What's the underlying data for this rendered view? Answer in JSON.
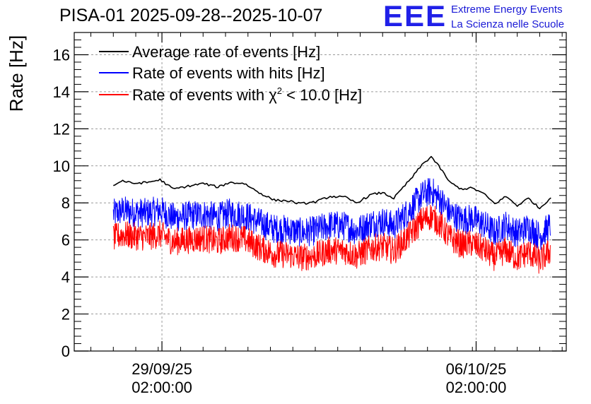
{
  "chart_data": {
    "type": "line",
    "title": "PISA-01 2025-09-28--2025-10-07",
    "xlabel": "",
    "ylabel": "Rate [Hz]",
    "ylim": [
      0,
      17.2
    ],
    "yticks": [
      0,
      2,
      4,
      6,
      8,
      10,
      12,
      14,
      16
    ],
    "x_unit": "hours since 2025-09-28 00:00",
    "xlim": [
      -20.9,
      242.2
    ],
    "xticks": [
      {
        "x": 26,
        "label_date": "29/09/25",
        "label_time": "02:00:00"
      },
      {
        "x": 194,
        "label_date": "06/10/25",
        "label_time": "02:00:00"
      }
    ],
    "grid": true,
    "legend": "top-left",
    "series": [
      {
        "name": "Average rate of events [Hz]",
        "color": "#000000",
        "kind": "smooth",
        "x": [
          0,
          5,
          10,
          18,
          25,
          32,
          40,
          48,
          56,
          62,
          70,
          78,
          86,
          94,
          100,
          108,
          116,
          124,
          130,
          138,
          144,
          150,
          156,
          160,
          165,
          170,
          175,
          180,
          186,
          192,
          198,
          204,
          210,
          216,
          222,
          228,
          234
        ],
        "values": [
          8.95,
          9.2,
          9.05,
          9.1,
          9.25,
          8.75,
          8.9,
          9.05,
          8.85,
          9.1,
          9.05,
          8.55,
          8.15,
          8.1,
          7.95,
          8.05,
          8.35,
          8.3,
          8.0,
          8.45,
          8.55,
          8.25,
          8.95,
          9.4,
          10.05,
          10.5,
          9.85,
          9.1,
          8.75,
          8.8,
          8.5,
          7.95,
          8.35,
          7.85,
          8.25,
          7.7,
          8.3
        ]
      },
      {
        "name": "Rate of events with hits [Hz]",
        "color": "#0000ff",
        "kind": "noisy",
        "x": [
          0,
          5,
          10,
          18,
          25,
          32,
          40,
          48,
          56,
          62,
          70,
          78,
          86,
          94,
          100,
          108,
          116,
          124,
          130,
          138,
          144,
          150,
          156,
          160,
          165,
          170,
          175,
          180,
          186,
          192,
          198,
          204,
          210,
          216,
          222,
          228,
          234
        ],
        "values": [
          7.4,
          7.6,
          7.5,
          7.45,
          7.6,
          7.2,
          7.3,
          7.4,
          7.2,
          7.45,
          7.35,
          6.95,
          6.6,
          6.55,
          6.4,
          6.5,
          6.8,
          6.75,
          6.5,
          6.9,
          7.0,
          6.75,
          7.35,
          7.8,
          8.4,
          8.65,
          8.15,
          7.45,
          7.1,
          7.15,
          6.85,
          6.4,
          6.8,
          6.35,
          6.7,
          6.2,
          6.8
        ],
        "noise": 0.8
      },
      {
        "name": "Rate of events with χ² < 10.0 [Hz]",
        "color": "#ff0000",
        "kind": "noisy",
        "x": [
          0,
          5,
          10,
          18,
          25,
          32,
          40,
          48,
          56,
          62,
          70,
          78,
          86,
          94,
          100,
          108,
          116,
          124,
          130,
          138,
          144,
          150,
          156,
          160,
          165,
          170,
          175,
          180,
          186,
          192,
          198,
          204,
          210,
          216,
          222,
          228,
          234
        ],
        "values": [
          6.1,
          6.3,
          6.2,
          6.15,
          6.3,
          5.9,
          6.0,
          6.1,
          5.9,
          6.15,
          6.05,
          5.6,
          5.25,
          5.2,
          5.05,
          5.15,
          5.45,
          5.4,
          5.15,
          5.55,
          5.65,
          5.4,
          6.0,
          6.45,
          7.05,
          7.3,
          6.8,
          6.1,
          5.75,
          5.8,
          5.5,
          5.05,
          5.45,
          5.0,
          5.35,
          4.85,
          5.45
        ],
        "noise": 0.75
      }
    ]
  },
  "logo": {
    "letters": "EEE",
    "line1": "Extreme Energy Events",
    "line2": "La Scienza nelle Scuole"
  },
  "legend_items": {
    "avg_label": "Average rate of events [Hz]",
    "hits_label": "Rate of events with hits [Hz]",
    "chi_prefix": "Rate of events with χ",
    "chi_sup": "2",
    "chi_suffix": " < 10.0 [Hz]"
  }
}
